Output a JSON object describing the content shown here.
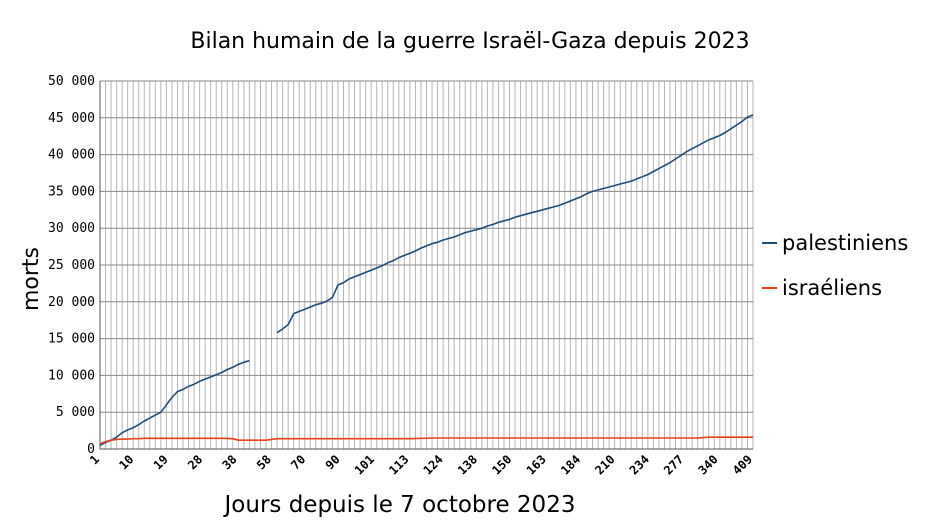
{
  "chart_data": {
    "type": "line",
    "title": "Bilan humain de la guerre Israël-Gaza depuis 2023",
    "xlabel": "Jours depuis le 7 octobre 2023",
    "ylabel": "morts",
    "ylim": [
      0,
      50000
    ],
    "yticks": [
      0,
      5000,
      10000,
      15000,
      20000,
      25000,
      30000,
      35000,
      40000,
      45000,
      50000
    ],
    "ytick_labels": [
      "0",
      "5 000",
      "10 000",
      "15 000",
      "20 000",
      "25 000",
      "30 000",
      "35 000",
      "40 000",
      "45 000",
      "50 000"
    ],
    "xtick_labels": [
      "1",
      "10",
      "19",
      "28",
      "38",
      "58",
      "70",
      "90",
      "101",
      "113",
      "124",
      "138",
      "150",
      "163",
      "184",
      "210",
      "234",
      "277",
      "340",
      "409"
    ],
    "grid": true,
    "legend": "right",
    "series": [
      {
        "name": "palestiniens",
        "color": "#1f4e79",
        "segments": [
          [
            [
              0,
              500
            ],
            [
              1,
              900
            ],
            [
              2,
              1200
            ],
            [
              3,
              1600
            ],
            [
              4,
              2200
            ],
            [
              5,
              2600
            ],
            [
              6,
              2900
            ],
            [
              7,
              3300
            ],
            [
              8,
              3800
            ],
            [
              9,
              4200
            ],
            [
              10,
              4600
            ],
            [
              11,
              5000
            ],
            [
              12,
              6000
            ],
            [
              13,
              7000
            ],
            [
              14,
              7800
            ],
            [
              15,
              8100
            ],
            [
              16,
              8500
            ],
            [
              17,
              8800
            ],
            [
              18,
              9200
            ],
            [
              19,
              9500
            ],
            [
              20,
              9800
            ],
            [
              21,
              10100
            ],
            [
              22,
              10400
            ],
            [
              23,
              10800
            ],
            [
              24,
              11100
            ],
            [
              25,
              11500
            ],
            [
              26,
              11800
            ],
            [
              27,
              12000
            ]
          ],
          [
            [
              32,
              15800
            ],
            [
              33,
              16300
            ],
            [
              34,
              16900
            ],
            [
              35,
              18400
            ],
            [
              36,
              18700
            ],
            [
              37,
              19000
            ],
            [
              38,
              19300
            ],
            [
              39,
              19600
            ],
            [
              40,
              19800
            ],
            [
              41,
              20100
            ],
            [
              42,
              20600
            ],
            [
              43,
              22300
            ],
            [
              44,
              22600
            ],
            [
              45,
              23100
            ],
            [
              46,
              23400
            ],
            [
              47,
              23700
            ],
            [
              48,
              24000
            ],
            [
              49,
              24300
            ],
            [
              50,
              24600
            ],
            [
              51,
              24900
            ],
            [
              52,
              25300
            ],
            [
              53,
              25600
            ],
            [
              54,
              26000
            ],
            [
              55,
              26300
            ],
            [
              56,
              26600
            ],
            [
              57,
              26900
            ],
            [
              58,
              27300
            ],
            [
              59,
              27600
            ],
            [
              60,
              27900
            ],
            [
              61,
              28100
            ],
            [
              62,
              28400
            ],
            [
              63,
              28600
            ],
            [
              64,
              28800
            ],
            [
              65,
              29100
            ],
            [
              66,
              29400
            ],
            [
              67,
              29600
            ],
            [
              68,
              29800
            ],
            [
              69,
              30000
            ],
            [
              70,
              30300
            ],
            [
              71,
              30500
            ],
            [
              72,
              30800
            ],
            [
              73,
              31000
            ],
            [
              74,
              31200
            ],
            [
              75,
              31500
            ],
            [
              76,
              31700
            ],
            [
              77,
              31900
            ],
            [
              78,
              32100
            ],
            [
              79,
              32300
            ],
            [
              80,
              32500
            ],
            [
              81,
              32700
            ],
            [
              82,
              32900
            ],
            [
              83,
              33100
            ],
            [
              84,
              33400
            ],
            [
              85,
              33700
            ],
            [
              86,
              34000
            ],
            [
              87,
              34300
            ],
            [
              88,
              34700
            ],
            [
              89,
              35000
            ],
            [
              90,
              35200
            ],
            [
              91,
              35400
            ],
            [
              92,
              35600
            ],
            [
              93,
              35800
            ],
            [
              94,
              36000
            ],
            [
              95,
              36200
            ],
            [
              96,
              36400
            ],
            [
              97,
              36700
            ],
            [
              98,
              37000
            ],
            [
              99,
              37300
            ],
            [
              100,
              37700
            ],
            [
              101,
              38100
            ],
            [
              102,
              38500
            ],
            [
              103,
              38900
            ],
            [
              104,
              39400
            ],
            [
              105,
              39900
            ],
            [
              106,
              40400
            ],
            [
              107,
              40800
            ],
            [
              108,
              41200
            ],
            [
              109,
              41600
            ],
            [
              110,
              42000
            ],
            [
              111,
              42300
            ],
            [
              112,
              42600
            ],
            [
              113,
              43000
            ],
            [
              114,
              43500
            ],
            [
              115,
              44000
            ],
            [
              116,
              44500
            ],
            [
              117,
              45100
            ],
            [
              118,
              45400
            ]
          ]
        ]
      },
      {
        "name": "israéliens",
        "color": "#e8411a",
        "segments": [
          [
            [
              0,
              700
            ],
            [
              1,
              1000
            ],
            [
              2,
              1200
            ],
            [
              3,
              1300
            ],
            [
              4,
              1350
            ],
            [
              5,
              1350
            ],
            [
              6,
              1400
            ],
            [
              7,
              1400
            ],
            [
              8,
              1450
            ],
            [
              9,
              1450
            ],
            [
              10,
              1450
            ],
            [
              12,
              1450
            ],
            [
              14,
              1450
            ],
            [
              16,
              1450
            ],
            [
              18,
              1450
            ],
            [
              20,
              1450
            ],
            [
              22,
              1450
            ],
            [
              24,
              1400
            ],
            [
              25,
              1200
            ],
            [
              26,
              1200
            ],
            [
              28,
              1200
            ],
            [
              30,
              1200
            ],
            [
              32,
              1400
            ],
            [
              36,
              1400
            ],
            [
              40,
              1400
            ],
            [
              44,
              1400
            ],
            [
              48,
              1400
            ],
            [
              52,
              1400
            ],
            [
              56,
              1400
            ],
            [
              60,
              1500
            ],
            [
              64,
              1500
            ],
            [
              68,
              1500
            ],
            [
              72,
              1500
            ],
            [
              76,
              1500
            ],
            [
              80,
              1500
            ],
            [
              84,
              1500
            ],
            [
              88,
              1500
            ],
            [
              92,
              1500
            ],
            [
              96,
              1500
            ],
            [
              100,
              1500
            ],
            [
              104,
              1500
            ],
            [
              108,
              1500
            ],
            [
              110,
              1600
            ],
            [
              112,
              1600
            ],
            [
              114,
              1600
            ],
            [
              116,
              1600
            ],
            [
              118,
              1600
            ]
          ]
        ]
      }
    ]
  }
}
